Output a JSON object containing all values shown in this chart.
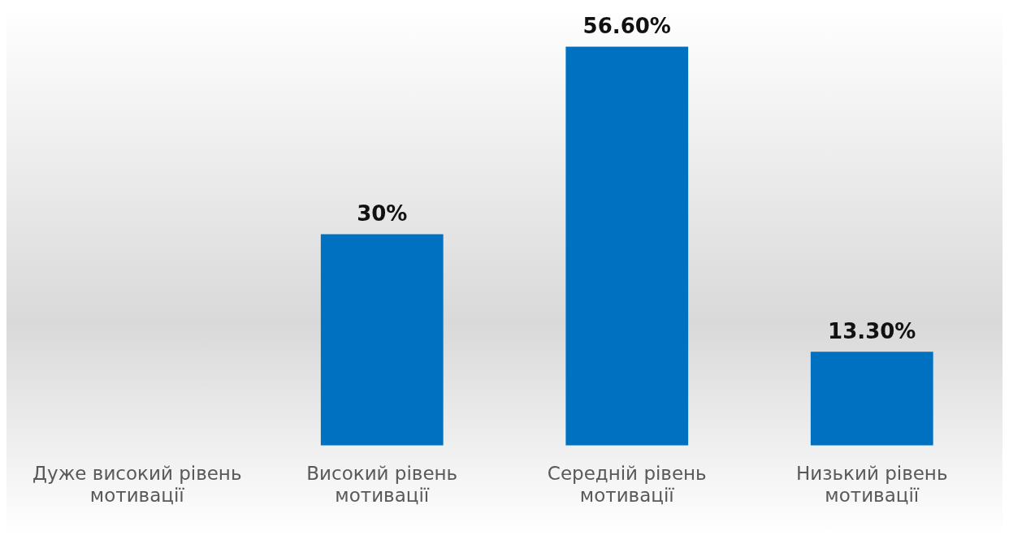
{
  "chart_data": {
    "type": "bar",
    "categories": [
      "Дуже високий рівень мотивації",
      "Високий рівень мотивації",
      "Середній рівень мотивації",
      "Низький рівень мотивації"
    ],
    "values": [
      0,
      30,
      56.6,
      13.3
    ],
    "value_labels": [
      null,
      "30%",
      "56.60%",
      "13.30%"
    ],
    "color": "#0070c0",
    "grid": false,
    "legend": false
  }
}
